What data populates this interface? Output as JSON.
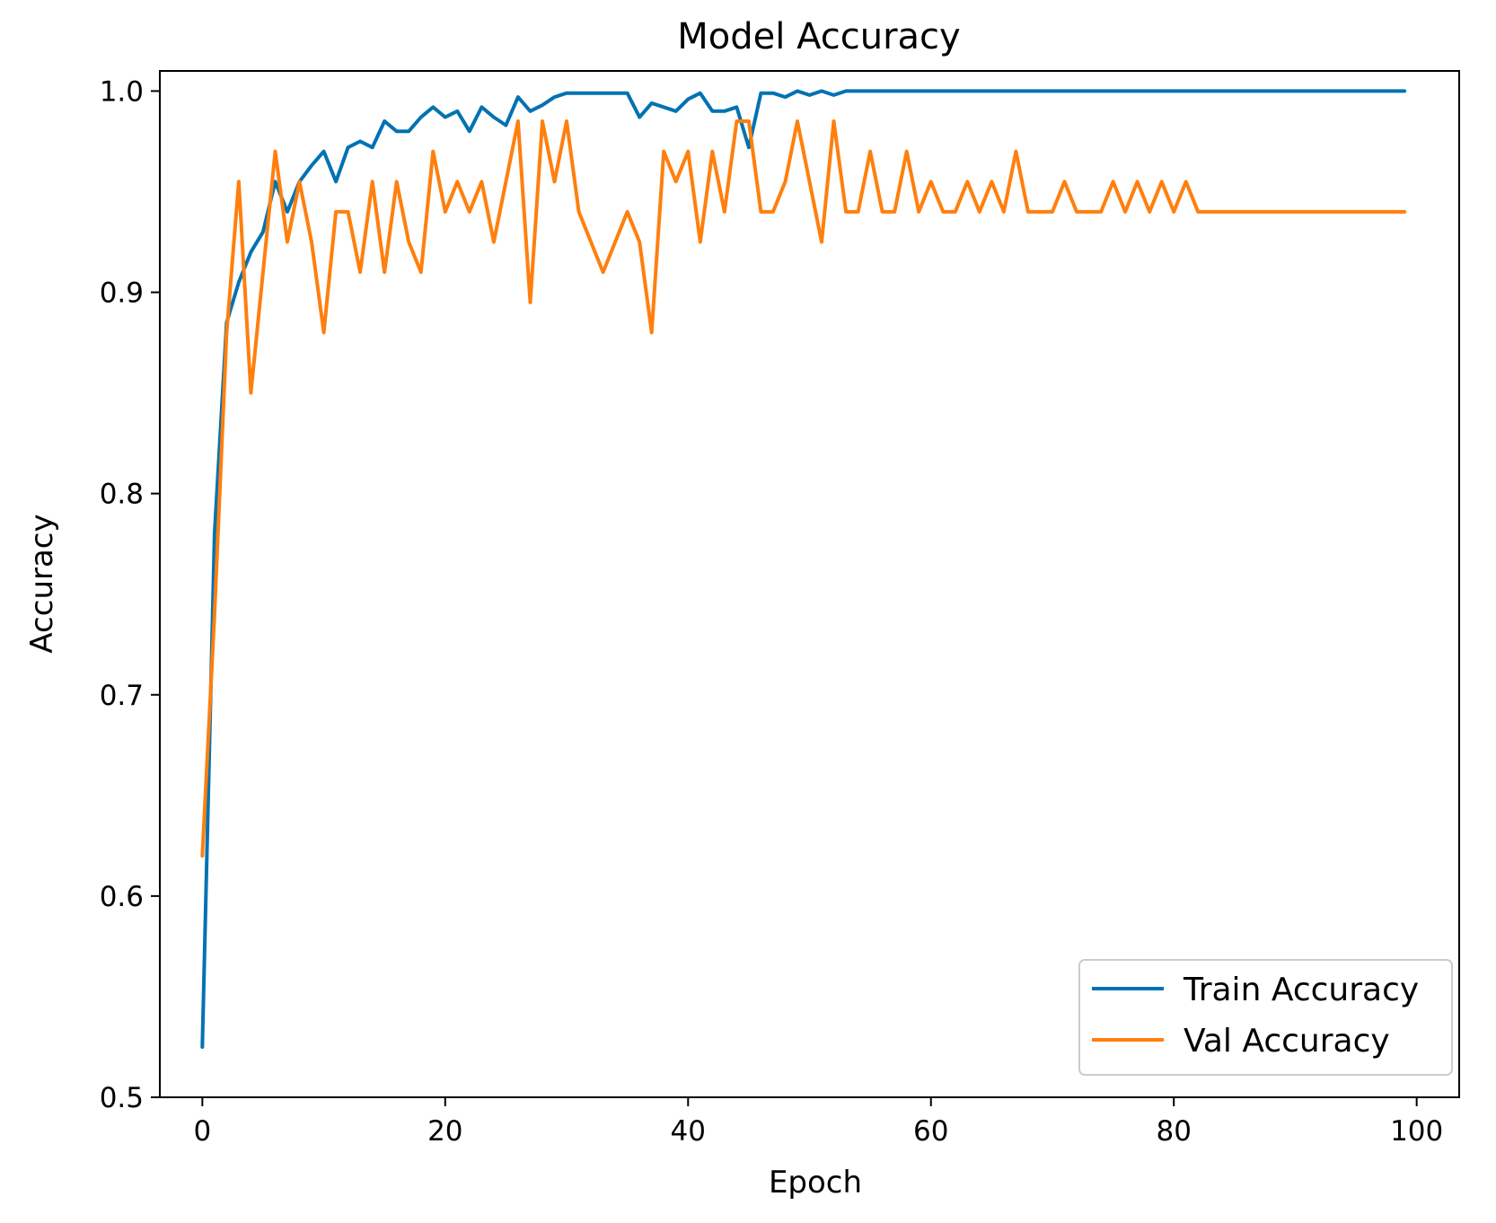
{
  "chart_data": {
    "type": "line",
    "title": "Model Accuracy",
    "xlabel": "Epoch",
    "ylabel": "Accuracy",
    "xlim": [
      -3.5,
      103.5
    ],
    "ylim": [
      0.5,
      1.01
    ],
    "xticks": [
      0,
      20,
      40,
      60,
      80,
      100
    ],
    "yticks": [
      0.5,
      0.6,
      0.7,
      0.8,
      0.9,
      1.0
    ],
    "xtick_labels": [
      "0",
      "20",
      "40",
      "60",
      "80",
      "100"
    ],
    "ytick_labels": [
      "0.5",
      "0.6",
      "0.7",
      "0.8",
      "0.9",
      "1.0"
    ],
    "grid": false,
    "legend_position": "lower-right",
    "x": [
      0,
      1,
      2,
      3,
      4,
      5,
      6,
      7,
      8,
      9,
      10,
      11,
      12,
      13,
      14,
      15,
      16,
      17,
      18,
      19,
      20,
      21,
      22,
      23,
      24,
      25,
      26,
      27,
      28,
      29,
      30,
      31,
      32,
      33,
      34,
      35,
      36,
      37,
      38,
      39,
      40,
      41,
      42,
      43,
      44,
      45,
      46,
      47,
      48,
      49,
      50,
      51,
      52,
      53,
      54,
      55,
      56,
      57,
      58,
      59,
      60,
      61,
      62,
      63,
      64,
      65,
      66,
      67,
      68,
      69,
      70,
      71,
      72,
      73,
      74,
      75,
      76,
      77,
      78,
      79,
      80,
      81,
      82,
      83,
      84,
      85,
      86,
      87,
      88,
      89,
      90,
      91,
      92,
      93,
      94,
      95,
      96,
      97,
      98,
      99
    ],
    "series": [
      {
        "name": "Train Accuracy",
        "color": "#0072b2",
        "values": [
          0.525,
          0.78,
          0.885,
          0.905,
          0.92,
          0.93,
          0.955,
          0.94,
          0.955,
          0.963,
          0.97,
          0.955,
          0.972,
          0.975,
          0.972,
          0.985,
          0.98,
          0.98,
          0.987,
          0.992,
          0.987,
          0.99,
          0.98,
          0.992,
          0.987,
          0.983,
          0.997,
          0.99,
          0.993,
          0.997,
          0.999,
          0.999,
          0.999,
          0.999,
          0.999,
          0.999,
          0.987,
          0.994,
          0.992,
          0.99,
          0.996,
          0.999,
          0.99,
          0.99,
          0.992,
          0.972,
          0.999,
          0.999,
          0.997,
          1.0,
          0.998,
          1.0,
          0.998,
          1.0,
          1.0,
          1.0,
          1.0,
          1.0,
          1.0,
          1.0,
          1.0,
          1.0,
          1.0,
          1.0,
          1.0,
          1.0,
          1.0,
          1.0,
          1.0,
          1.0,
          1.0,
          1.0,
          1.0,
          1.0,
          1.0,
          1.0,
          1.0,
          1.0,
          1.0,
          1.0,
          1.0,
          1.0,
          1.0,
          1.0,
          1.0,
          1.0,
          1.0,
          1.0,
          1.0,
          1.0,
          1.0,
          1.0,
          1.0,
          1.0,
          1.0,
          1.0,
          1.0,
          1.0,
          1.0,
          1.0
        ]
      },
      {
        "name": "Val Accuracy",
        "color": "#ff7f0e",
        "values": [
          0.62,
          0.74,
          0.88,
          0.955,
          0.85,
          0.91,
          0.97,
          0.925,
          0.955,
          0.925,
          0.88,
          0.94,
          0.94,
          0.91,
          0.955,
          0.91,
          0.955,
          0.925,
          0.91,
          0.97,
          0.94,
          0.955,
          0.94,
          0.955,
          0.925,
          0.955,
          0.985,
          0.895,
          0.985,
          0.955,
          0.985,
          0.94,
          0.925,
          0.91,
          0.925,
          0.94,
          0.925,
          0.88,
          0.97,
          0.955,
          0.97,
          0.925,
          0.97,
          0.94,
          0.985,
          0.985,
          0.94,
          0.94,
          0.955,
          0.985,
          0.955,
          0.925,
          0.985,
          0.94,
          0.94,
          0.97,
          0.94,
          0.94,
          0.97,
          0.94,
          0.955,
          0.94,
          0.94,
          0.955,
          0.94,
          0.955,
          0.94,
          0.97,
          0.94,
          0.94,
          0.94,
          0.955,
          0.94,
          0.94,
          0.94,
          0.955,
          0.94,
          0.955,
          0.94,
          0.955,
          0.94,
          0.955,
          0.94,
          0.94,
          0.94,
          0.94,
          0.94,
          0.94,
          0.94,
          0.94,
          0.94,
          0.94,
          0.94,
          0.94,
          0.94,
          0.94,
          0.94,
          0.94,
          0.94,
          0.94
        ]
      }
    ]
  }
}
